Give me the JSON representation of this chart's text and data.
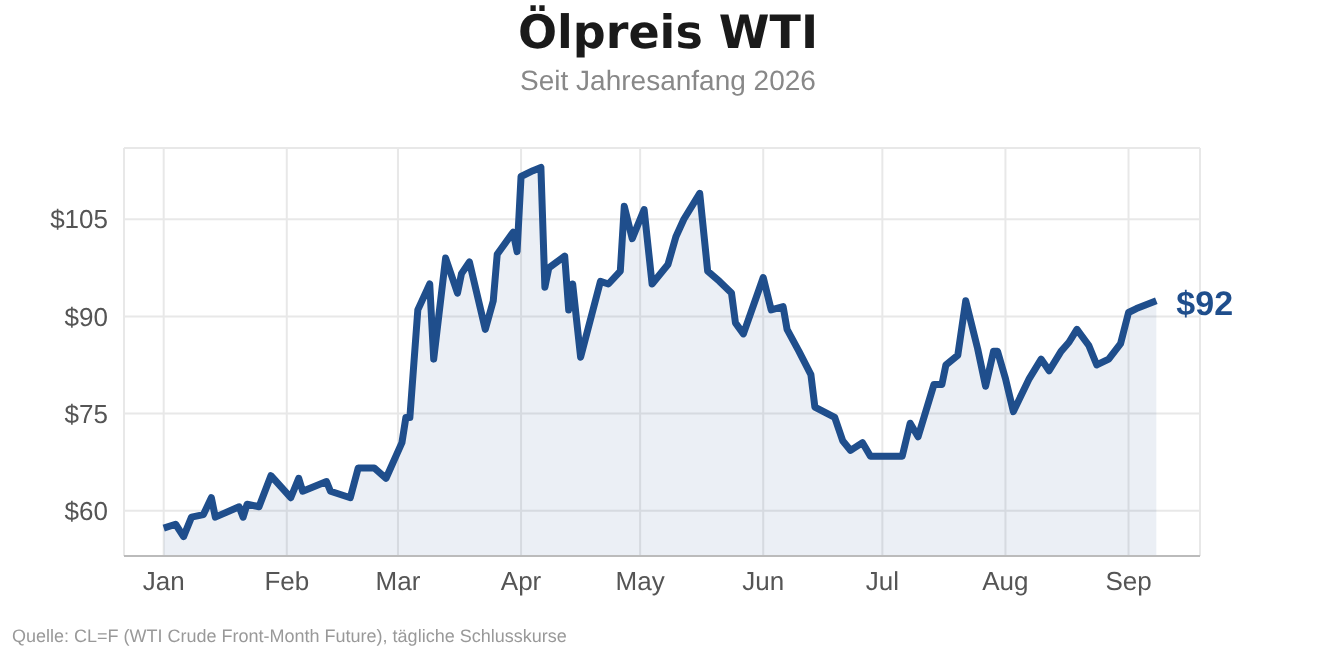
{
  "chart_data": {
    "type": "area",
    "title": "Ölpreis WTI",
    "subtitle": "Seit Jahresanfang 2026",
    "annotations": [
      {
        "text": "$92",
        "x": "2026-09-08",
        "y": 92
      },
      "Quelle: CL=F (WTI Crude Front-Month Future), tägliche Schlusskurse"
    ],
    "x": [
      "2026-01-01",
      "2026-01-04",
      "2026-01-06",
      "2026-01-08",
      "2026-01-11",
      "2026-01-13",
      "2026-01-14",
      "2026-01-20",
      "2026-01-21",
      "2026-01-22",
      "2026-01-25",
      "2026-01-28",
      "2026-02-02",
      "2026-02-04",
      "2026-02-05",
      "2026-02-11",
      "2026-02-12",
      "2026-02-17",
      "2026-02-19",
      "2026-02-23",
      "2026-02-26",
      "2026-03-02",
      "2026-03-03",
      "2026-03-04",
      "2026-03-06",
      "2026-03-09",
      "2026-03-10",
      "2026-03-13",
      "2026-03-16",
      "2026-03-17",
      "2026-03-19",
      "2026-03-23",
      "2026-03-25",
      "2026-03-26",
      "2026-03-30",
      "2026-03-31",
      "2026-04-01",
      "2026-04-04",
      "2026-04-06",
      "2026-04-07",
      "2026-04-08",
      "2026-04-12",
      "2026-04-13",
      "2026-04-14",
      "2026-04-16",
      "2026-04-21",
      "2026-04-23",
      "2026-04-26",
      "2026-04-27",
      "2026-04-29",
      "2026-05-02",
      "2026-05-04",
      "2026-05-08",
      "2026-05-10",
      "2026-05-12",
      "2026-05-16",
      "2026-05-18",
      "2026-05-21",
      "2026-05-24",
      "2026-05-25",
      "2026-05-27",
      "2026-06-01",
      "2026-06-03",
      "2026-06-06",
      "2026-06-07",
      "2026-06-10",
      "2026-06-13",
      "2026-06-14",
      "2026-06-19",
      "2026-06-21",
      "2026-06-23",
      "2026-06-26",
      "2026-06-28",
      "2026-07-06",
      "2026-07-08",
      "2026-07-10",
      "2026-07-14",
      "2026-07-16",
      "2026-07-17",
      "2026-07-20",
      "2026-07-22",
      "2026-07-25",
      "2026-07-27",
      "2026-07-29",
      "2026-07-30",
      "2026-08-01",
      "2026-08-03",
      "2026-08-07",
      "2026-08-10",
      "2026-08-12",
      "2026-08-15",
      "2026-08-17",
      "2026-08-19",
      "2026-08-22",
      "2026-08-24",
      "2026-08-27",
      "2026-08-30",
      "2026-09-01",
      "2026-09-03",
      "2026-09-08"
    ],
    "series": [
      {
        "color": "#1f4e8c",
        "values": [
          57.3,
          57.9,
          56,
          59,
          59.4,
          62,
          59,
          60.6,
          59,
          61,
          60.6,
          65.4,
          62,
          65,
          63,
          64.5,
          63,
          62,
          66.6,
          66.6,
          65,
          70.5,
          74.4,
          74.4,
          91,
          95,
          83.4,
          99,
          93.6,
          96.6,
          98.4,
          88,
          92.4,
          99.6,
          103,
          100,
          111.6,
          112.5,
          113,
          94.5,
          97.5,
          99.3,
          91,
          95,
          83.7,
          95.4,
          95,
          97,
          107,
          102,
          106.5,
          95,
          98,
          102.3,
          105,
          109,
          97,
          95.4,
          93.6,
          89,
          87.3,
          96,
          91,
          91.5,
          88,
          84.6,
          81,
          76,
          74.4,
          70.8,
          69.3,
          70.5,
          68.4,
          68.4,
          73.5,
          71.4,
          79.5,
          79.5,
          82.5,
          84,
          92.4,
          85,
          79.2,
          84.6,
          84.6,
          80.4,
          75.3,
          80.4,
          83.4,
          81.6,
          84.6,
          86,
          88,
          85.5,
          82.5,
          83.4,
          85.8,
          90.6,
          91.2,
          92.4
        ]
      }
    ],
    "xlim": [
      "2025-12-22",
      "2026-09-19"
    ],
    "xticks": [
      {
        "value": "2026-01-01",
        "label": "Jan"
      },
      {
        "value": "2026-02-01",
        "label": "Feb"
      },
      {
        "value": "2026-03-01",
        "label": "Mar"
      },
      {
        "value": "2026-04-01",
        "label": "Apr"
      },
      {
        "value": "2026-05-01",
        "label": "May"
      },
      {
        "value": "2026-06-01",
        "label": "Jun"
      },
      {
        "value": "2026-07-01",
        "label": "Jul"
      },
      {
        "value": "2026-08-01",
        "label": "Aug"
      },
      {
        "value": "2026-09-01",
        "label": "Sep"
      }
    ],
    "ylim": [
      53,
      116
    ],
    "yticks": [
      {
        "value": 60,
        "label": "$60"
      },
      {
        "value": 75,
        "label": "$75"
      },
      {
        "value": 90,
        "label": "$90"
      },
      {
        "value": 105,
        "label": "$105"
      }
    ],
    "grid": true,
    "legend": false,
    "marker": "none",
    "line_style": "solid"
  }
}
